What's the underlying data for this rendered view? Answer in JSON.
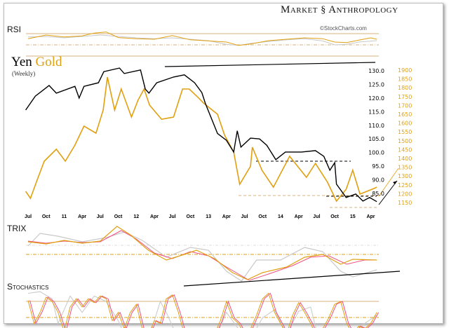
{
  "header": {
    "brand": "Market Anthropology",
    "brand_left": "Market",
    "brand_right": "Anthropology",
    "copyright": "©StockCharts.com"
  },
  "title": {
    "yen": "Yen",
    "gold": "Gold",
    "subtitle": "(Weekly)"
  },
  "panels": {
    "rsi": "RSI",
    "trix": "TRIX",
    "stochastics": "Stochastics"
  },
  "colors": {
    "yen": "#000000",
    "gold": "#e0a010",
    "signal": "#f05080",
    "gray": "#c8c8c8",
    "band": "#d9b27a"
  },
  "chart_data": {
    "type": "line",
    "x_unit": "months since Jul 2010",
    "x_ticks": [
      "Jul",
      "Oct",
      "11",
      "Apr",
      "Jul",
      "Oct",
      "12",
      "Apr",
      "Jul",
      "Oct",
      "13",
      "Apr",
      "Jul",
      "Oct",
      "14",
      "Apr",
      "Jul",
      "Oct",
      "15",
      "Apr"
    ],
    "y_left": {
      "ticks": [
        "130.0",
        "125.0",
        "120.0",
        "115.0",
        "110.0",
        "105.0",
        "100.0",
        "95.0",
        "90.0",
        "85.0"
      ],
      "range": [
        85,
        130
      ]
    },
    "y_right": {
      "ticks": [
        "1900",
        "1850",
        "1800",
        "1750",
        "1700",
        "1650",
        "1600",
        "1550",
        "1500",
        "1450",
        "1400",
        "1350",
        "1300",
        "1250",
        "1200",
        "1150"
      ],
      "range": [
        1150,
        1900
      ]
    },
    "series": [
      {
        "name": "Yen",
        "axis": "left",
        "points": [
          [
            -0.4,
            115.6
          ],
          [
            1.2,
            120.7
          ],
          [
            3.5,
            124.6
          ],
          [
            4.7,
            121.8
          ],
          [
            7.8,
            124.3
          ],
          [
            8.5,
            120
          ],
          [
            9.3,
            124.3
          ],
          [
            11.7,
            125.6
          ],
          [
            12.6,
            129.7
          ],
          [
            15.2,
            131
          ],
          [
            16,
            129
          ],
          [
            18.7,
            130.3
          ],
          [
            19.5,
            123.3
          ],
          [
            20.1,
            121.8
          ],
          [
            21.4,
            125.6
          ],
          [
            24.2,
            127.7
          ],
          [
            26,
            128.5
          ],
          [
            27.7,
            125.6
          ],
          [
            28.9,
            122
          ],
          [
            29.5,
            118
          ],
          [
            31.5,
            107
          ],
          [
            33,
            104.5
          ],
          [
            34.2,
            100.2
          ],
          [
            34.8,
            108
          ],
          [
            35.4,
            102
          ],
          [
            37,
            105.3
          ],
          [
            38.5,
            105
          ],
          [
            39.7,
            102.7
          ],
          [
            41.2,
            97.4
          ],
          [
            42.8,
            100.2
          ],
          [
            45.5,
            100.2
          ],
          [
            47.8,
            100.7
          ],
          [
            49.2,
            98.6
          ],
          [
            50.2,
            93.5
          ],
          [
            51,
            96.3
          ],
          [
            51.3,
            88.4
          ],
          [
            52.9,
            83.5
          ],
          [
            54.5,
            84.8
          ],
          [
            55.7,
            82.2
          ],
          [
            56.8,
            83.5
          ],
          [
            58,
            82
          ]
        ]
      },
      {
        "name": "Gold",
        "axis": "right",
        "points": [
          [
            -0.4,
            1214
          ],
          [
            0.4,
            1174
          ],
          [
            1.5,
            1277
          ],
          [
            2.7,
            1384
          ],
          [
            4.7,
            1452
          ],
          [
            6.2,
            1384
          ],
          [
            7.8,
            1475
          ],
          [
            9.3,
            1583
          ],
          [
            11.3,
            1543
          ],
          [
            12.5,
            1674
          ],
          [
            13.2,
            1860
          ],
          [
            14.4,
            1674
          ],
          [
            15.5,
            1793
          ],
          [
            17.2,
            1634
          ],
          [
            18.3,
            1730
          ],
          [
            19.3,
            1793
          ],
          [
            20.2,
            1702
          ],
          [
            22.2,
            1622
          ],
          [
            24.2,
            1634
          ],
          [
            25.7,
            1793
          ],
          [
            26.8,
            1793
          ],
          [
            28.4,
            1741
          ],
          [
            29.2,
            1713
          ],
          [
            31.5,
            1650
          ],
          [
            32.7,
            1531
          ],
          [
            34.2,
            1436
          ],
          [
            35.2,
            1253
          ],
          [
            37,
            1356
          ],
          [
            37.3,
            1463
          ],
          [
            38.9,
            1333
          ],
          [
            40.8,
            1237
          ],
          [
            43.5,
            1412
          ],
          [
            46.3,
            1293
          ],
          [
            47.8,
            1372
          ],
          [
            49.8,
            1265
          ],
          [
            51.3,
            1158
          ],
          [
            52.9,
            1225
          ],
          [
            54,
            1333
          ],
          [
            55.2,
            1198
          ],
          [
            57.2,
            1225
          ],
          [
            58,
            1237
          ]
        ]
      }
    ],
    "rsi": {
      "bands": [
        70,
        50,
        30
      ],
      "gold": [
        [
          0,
          52
        ],
        [
          3,
          65
        ],
        [
          6,
          58
        ],
        [
          9,
          62
        ],
        [
          11,
          72
        ],
        [
          13,
          76
        ],
        [
          15,
          56
        ],
        [
          18,
          52
        ],
        [
          21,
          50
        ],
        [
          24,
          63
        ],
        [
          27,
          48
        ],
        [
          30,
          44
        ],
        [
          33,
          40
        ],
        [
          35,
          28
        ],
        [
          37,
          33
        ],
        [
          40,
          45
        ],
        [
          43,
          50
        ],
        [
          46,
          55
        ],
        [
          49,
          52
        ],
        [
          51,
          40
        ],
        [
          53,
          38
        ],
        [
          55,
          47
        ],
        [
          57,
          55
        ],
        [
          58,
          50
        ]
      ],
      "yen": [
        [
          0,
          58
        ],
        [
          3,
          60
        ],
        [
          6,
          55
        ],
        [
          9,
          60
        ],
        [
          12,
          65
        ],
        [
          15,
          60
        ],
        [
          18,
          55
        ],
        [
          21,
          52
        ],
        [
          24,
          55
        ],
        [
          27,
          50
        ],
        [
          30,
          45
        ],
        [
          33,
          32
        ],
        [
          35,
          28
        ],
        [
          37,
          35
        ],
        [
          40,
          42
        ],
        [
          43,
          48
        ],
        [
          46,
          52
        ],
        [
          49,
          44
        ],
        [
          51,
          30
        ],
        [
          53,
          32
        ],
        [
          55,
          40
        ],
        [
          58,
          45
        ]
      ]
    },
    "trix": {
      "gold": [
        [
          0,
          0.9
        ],
        [
          3,
          0.75
        ],
        [
          6,
          1.0
        ],
        [
          9,
          0.8
        ],
        [
          12,
          0.95
        ],
        [
          14.8,
          2.0
        ],
        [
          17,
          1.4
        ],
        [
          20,
          0.3
        ],
        [
          23,
          -0.4
        ],
        [
          26,
          0.0
        ],
        [
          28,
          0.3
        ],
        [
          31,
          -0.3
        ],
        [
          34,
          -1.3
        ],
        [
          36.5,
          -1.8
        ],
        [
          39,
          -1.3
        ],
        [
          43,
          -0.9
        ],
        [
          46,
          -0.2
        ],
        [
          49,
          0.0
        ],
        [
          52,
          -0.7
        ],
        [
          54,
          -0.35
        ],
        [
          58,
          -0.4
        ]
      ],
      "signal": [
        [
          0,
          0.95
        ],
        [
          3,
          0.8
        ],
        [
          6,
          0.95
        ],
        [
          9,
          0.85
        ],
        [
          12,
          0.9
        ],
        [
          15.5,
          1.7
        ],
        [
          18,
          1.1
        ],
        [
          21,
          0.1
        ],
        [
          24,
          -0.3
        ],
        [
          27,
          0.2
        ],
        [
          30,
          -0.1
        ],
        [
          33,
          -0.9
        ],
        [
          36.8,
          -1.85
        ],
        [
          40,
          -1.4
        ],
        [
          44,
          -0.8
        ],
        [
          47,
          -0.2
        ],
        [
          50,
          -0.1
        ],
        [
          53,
          -0.7
        ],
        [
          56,
          -0.4
        ],
        [
          58,
          -0.4
        ]
      ],
      "yen": [
        [
          0,
          0.6
        ],
        [
          2,
          1.5
        ],
        [
          5,
          1.3
        ],
        [
          9,
          0.9
        ],
        [
          13,
          1.2
        ],
        [
          16,
          1.6
        ],
        [
          19,
          1.0
        ],
        [
          23,
          -0.2
        ],
        [
          27,
          0.5
        ],
        [
          30,
          0.3
        ],
        [
          33,
          -1.2
        ],
        [
          35.5,
          -1.9
        ],
        [
          38,
          -0.4
        ],
        [
          42,
          -0.4
        ],
        [
          46,
          0.5
        ],
        [
          49,
          0.2
        ],
        [
          52,
          -1.2
        ],
        [
          54,
          -1.6
        ],
        [
          58,
          -1.1
        ]
      ]
    },
    "stochastics": {
      "bands": [
        80,
        50,
        20
      ],
      "k": [
        [
          0,
          82
        ],
        [
          1,
          40
        ],
        [
          2,
          60
        ],
        [
          3,
          88
        ],
        [
          4,
          80
        ],
        [
          5,
          60
        ],
        [
          6,
          25
        ],
        [
          7,
          70
        ],
        [
          8,
          85
        ],
        [
          9,
          70
        ],
        [
          10,
          85
        ],
        [
          11,
          78
        ],
        [
          12,
          90
        ],
        [
          13,
          85
        ],
        [
          14,
          45
        ],
        [
          15,
          60
        ],
        [
          16,
          30
        ],
        [
          17,
          60
        ],
        [
          18,
          75
        ],
        [
          19,
          30
        ],
        [
          20,
          18
        ],
        [
          21,
          45
        ],
        [
          22,
          40
        ],
        [
          23,
          85
        ],
        [
          24,
          92
        ],
        [
          25,
          60
        ],
        [
          26,
          20
        ],
        [
          27,
          28
        ],
        [
          28,
          22
        ],
        [
          29,
          25
        ],
        [
          30,
          22
        ],
        [
          31,
          20
        ],
        [
          32,
          45
        ],
        [
          33,
          80
        ],
        [
          34,
          50
        ],
        [
          35,
          40
        ],
        [
          36,
          20
        ],
        [
          37,
          30
        ],
        [
          38,
          55
        ],
        [
          39,
          85
        ],
        [
          40,
          95
        ],
        [
          41,
          60
        ],
        [
          42,
          40
        ],
        [
          43,
          20
        ],
        [
          44,
          55
        ],
        [
          45,
          78
        ],
        [
          46,
          60
        ],
        [
          47,
          40
        ],
        [
          48,
          15
        ],
        [
          49,
          30
        ],
        [
          50,
          50
        ],
        [
          51,
          75
        ],
        [
          52,
          80
        ],
        [
          53,
          40
        ],
        [
          54,
          20
        ],
        [
          55,
          35
        ],
        [
          56,
          30
        ],
        [
          57,
          40
        ],
        [
          58,
          60
        ]
      ],
      "gray": [
        [
          0,
          95
        ],
        [
          2,
          98
        ],
        [
          4,
          85
        ],
        [
          5,
          40
        ],
        [
          7,
          90
        ],
        [
          9,
          60
        ],
        [
          11,
          90
        ],
        [
          13,
          80
        ],
        [
          15,
          45
        ],
        [
          16,
          20
        ],
        [
          18,
          30
        ],
        [
          20,
          10
        ],
        [
          22,
          80
        ],
        [
          23,
          60
        ],
        [
          25,
          10
        ],
        [
          28,
          5
        ],
        [
          31,
          10
        ],
        [
          33,
          60
        ],
        [
          35,
          30
        ],
        [
          37,
          12
        ],
        [
          39,
          50
        ],
        [
          41,
          65
        ],
        [
          43,
          20
        ],
        [
          45,
          62
        ],
        [
          47,
          70
        ],
        [
          48,
          25
        ],
        [
          50,
          10
        ],
        [
          52,
          30
        ],
        [
          54,
          20
        ],
        [
          56,
          40
        ],
        [
          58,
          55
        ]
      ]
    }
  }
}
